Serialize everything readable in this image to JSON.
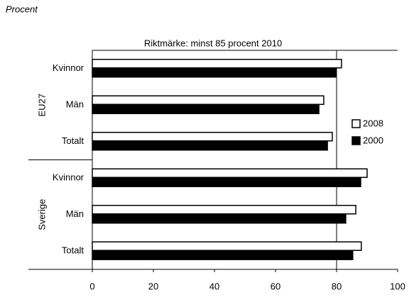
{
  "chart_data": {
    "type": "bar",
    "orientation": "horizontal",
    "unit_label": "Procent",
    "title": "Riktmärke: minst 85 procent 2010",
    "groups": [
      {
        "name": "EU27",
        "categories": [
          "Kvinnor",
          "Män",
          "Totalt"
        ]
      },
      {
        "name": "Sverige",
        "categories": [
          "Kvinnor",
          "Män",
          "Totalt"
        ]
      }
    ],
    "series": [
      {
        "name": "2008",
        "color": "#ffffff",
        "values": [
          81.6,
          75.8,
          78.6,
          90.0,
          86.3,
          88.1
        ]
      },
      {
        "name": "2000",
        "color": "#000000",
        "values": [
          79.8,
          74.2,
          77.0,
          87.9,
          83.0,
          85.3
        ]
      }
    ],
    "xlim": [
      0,
      100
    ],
    "xticks": [
      0,
      20,
      40,
      60,
      80,
      100
    ],
    "reference_line": 80,
    "legend": "right"
  }
}
